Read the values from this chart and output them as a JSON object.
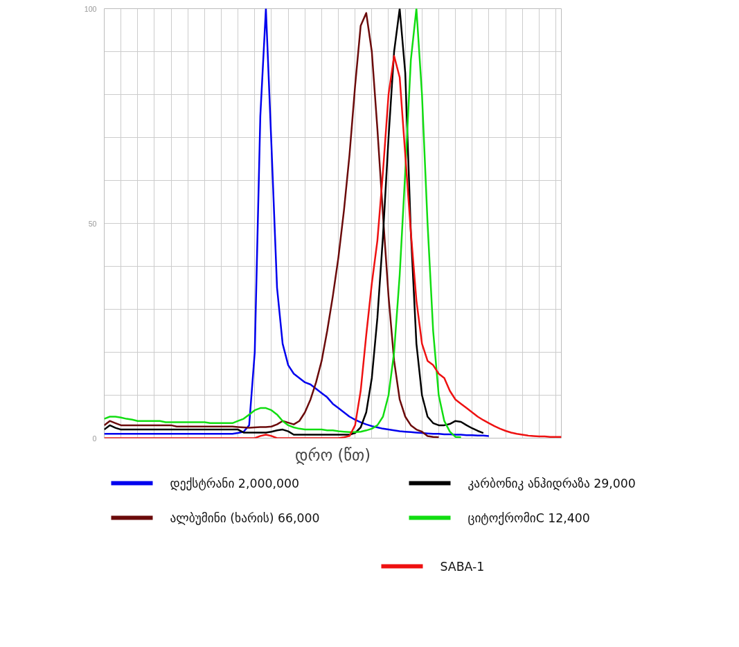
{
  "chart_data": {
    "type": "line",
    "xlabel": "დრო (წთ)",
    "categories": [
      null,
      null,
      null,
      null,
      null,
      null,
      null,
      null,
      null,
      null,
      null,
      null,
      null,
      null,
      null,
      null,
      null,
      null,
      null,
      null,
      null,
      null,
      null,
      null,
      null,
      null,
      null,
      null,
      null,
      null,
      null,
      null,
      null,
      null,
      null,
      null,
      null,
      null,
      null,
      null,
      null,
      null,
      null,
      null,
      null,
      null,
      null,
      null,
      null,
      null,
      null,
      null,
      null,
      null,
      null,
      null,
      null,
      null,
      null,
      null,
      null,
      null,
      null,
      null,
      null,
      null,
      null,
      null,
      null,
      null,
      null,
      null,
      null,
      null,
      null,
      null,
      null,
      null,
      null,
      null,
      null,
      null,
      null
    ],
    "ylim": [
      0,
      100
    ],
    "yticks": [
      0,
      {
        "value": 10,
        "label": null
      },
      {
        "value": 20,
        "label": null
      },
      {
        "value": 30,
        "label": null
      },
      {
        "value": 40,
        "label": null
      },
      50,
      {
        "value": 60,
        "label": null
      },
      {
        "value": 70,
        "label": null
      },
      {
        "value": 80,
        "label": null
      },
      {
        "value": 90,
        "label": null
      },
      100
    ],
    "grid": true,
    "legend": "bottom",
    "line_style": "solid",
    "series": [
      {
        "name": "დექსტრანი 2,000,000",
        "color": "#0000ee",
        "values": [
          1,
          1,
          1,
          1,
          1,
          1,
          1,
          1,
          1,
          1,
          1,
          1,
          1,
          1,
          1,
          1,
          1,
          1,
          1,
          1,
          1,
          1,
          1,
          1,
          1.2,
          1.5,
          3,
          20,
          75,
          100,
          68,
          35,
          22,
          17,
          15,
          14,
          13,
          12.5,
          11.5,
          10.5,
          9.5,
          8,
          7,
          6,
          5,
          4.3,
          3.7,
          3.2,
          2.8,
          2.5,
          2.2,
          2,
          1.8,
          1.6,
          1.5,
          1.4,
          1.3,
          1.2,
          1.1,
          1,
          1,
          0.9,
          0.9,
          0.8,
          0.8,
          0.7,
          0.7,
          0.6,
          0.6,
          0.5,
          null,
          null,
          null,
          null,
          null,
          null,
          null,
          null,
          null,
          null,
          null,
          null,
          null
        ]
      },
      {
        "name": "ალბუმინი (ხარის) 66,000",
        "color": "#6b0a0a",
        "values": [
          3,
          4,
          3.5,
          3,
          3,
          3,
          3,
          3,
          3,
          3,
          3,
          3,
          3,
          2.7,
          2.7,
          2.7,
          2.7,
          2.7,
          2.7,
          2.7,
          2.7,
          2.7,
          2.7,
          2.7,
          2.6,
          2.5,
          2.4,
          2.5,
          2.6,
          2.6,
          2.7,
          3.2,
          4,
          3.6,
          3.2,
          4,
          6,
          9,
          13,
          18,
          25,
          33,
          42,
          53,
          66,
          82,
          96,
          99,
          90,
          72,
          52,
          33,
          18,
          9,
          5,
          3,
          2,
          1.5,
          0.5,
          0.3,
          0.2,
          null,
          null,
          null,
          null,
          null,
          null,
          null,
          null,
          null,
          null,
          null,
          null,
          null,
          null,
          null,
          null,
          null,
          null,
          null,
          null,
          null,
          null
        ]
      },
      {
        "name": "კარბონიკ ანჰიდრაზა 29,000",
        "color": "#000000",
        "values": [
          2,
          3,
          2.4,
          2,
          2,
          2,
          2,
          2,
          2,
          2,
          2,
          2,
          2,
          2,
          2,
          2,
          2,
          2,
          2,
          2,
          2,
          2,
          2,
          2,
          2,
          1.3,
          1.3,
          1.3,
          1.3,
          1.3,
          1.5,
          1.8,
          2,
          1.6,
          0.8,
          0.8,
          0.8,
          0.8,
          0.8,
          0.8,
          0.8,
          0.8,
          0.8,
          0.8,
          0.8,
          1.2,
          2.5,
          6,
          14,
          28,
          47,
          70,
          90,
          100,
          85,
          48,
          22,
          10,
          5,
          3.5,
          3,
          3,
          3.3,
          4,
          3.8,
          3,
          2.3,
          1.7,
          1.2,
          null,
          null,
          null,
          null,
          null,
          null,
          null,
          null,
          null,
          null,
          null,
          null,
          null,
          null
        ]
      },
      {
        "name": "ციტოქრომიC 12,400",
        "color": "#11dd11",
        "values": [
          4.5,
          5,
          5,
          4.8,
          4.5,
          4.3,
          4,
          4,
          4,
          4,
          4,
          3.7,
          3.7,
          3.7,
          3.7,
          3.7,
          3.7,
          3.7,
          3.7,
          3.5,
          3.5,
          3.5,
          3.5,
          3.5,
          4,
          4.5,
          5.5,
          6.5,
          7,
          7,
          6.5,
          5.5,
          4,
          3,
          2.5,
          2.2,
          2,
          2,
          2,
          2,
          1.8,
          1.8,
          1.6,
          1.5,
          1.4,
          1.4,
          1.5,
          1.8,
          2.2,
          3,
          5,
          10,
          20,
          38,
          62,
          88,
          100,
          80,
          50,
          25,
          10,
          4,
          1.5,
          0.3,
          0.2,
          null,
          null,
          null,
          null,
          null,
          null,
          null,
          null,
          null,
          null,
          null,
          null,
          null,
          null,
          null,
          null,
          null,
          null
        ]
      },
      {
        "name": "SABA-1",
        "color": "#ee1111",
        "values": [
          0,
          0,
          0,
          0,
          0,
          0,
          0,
          0,
          0,
          0,
          0,
          0,
          0,
          0,
          0,
          0,
          0,
          0,
          0,
          0,
          0,
          0,
          0,
          0,
          0,
          0,
          0,
          0,
          0.5,
          0.8,
          0.5,
          0,
          0,
          0,
          0,
          0,
          0,
          0,
          0,
          0,
          0,
          0,
          0,
          0.2,
          0.5,
          3,
          11,
          24,
          36,
          46,
          62,
          80,
          89,
          84,
          66,
          48,
          32,
          22,
          18,
          17,
          15,
          14,
          11,
          9,
          8,
          7,
          6,
          5,
          4.2,
          3.5,
          2.8,
          2.2,
          1.7,
          1.3,
          1,
          0.8,
          0.6,
          0.5,
          0.4,
          0.4,
          0.3,
          0.3,
          0.3
        ]
      }
    ]
  }
}
